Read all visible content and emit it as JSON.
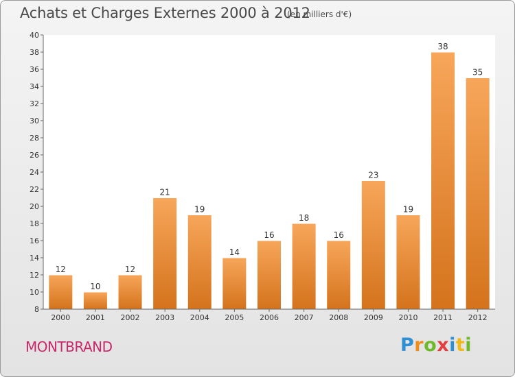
{
  "chart_data": {
    "type": "bar",
    "title": "Achats et Charges Externes 2000 à 2012",
    "subtitle": "(en milliers d'€)",
    "categories": [
      "2000",
      "2001",
      "2002",
      "2003",
      "2004",
      "2005",
      "2006",
      "2007",
      "2008",
      "2009",
      "2010",
      "2011",
      "2012"
    ],
    "values": [
      12,
      10,
      12,
      21,
      19,
      14,
      16,
      18,
      16,
      23,
      19,
      38,
      35
    ],
    "ylim": [
      8,
      40
    ],
    "ytick_step": 2,
    "grid": false,
    "bar_color_top": "#f7a65a",
    "bar_color_bottom": "#d4731c"
  },
  "commune": "MONTBRAND",
  "logo": {
    "letters": [
      "P",
      "r",
      "o",
      "x",
      "i",
      "t",
      "i"
    ]
  }
}
